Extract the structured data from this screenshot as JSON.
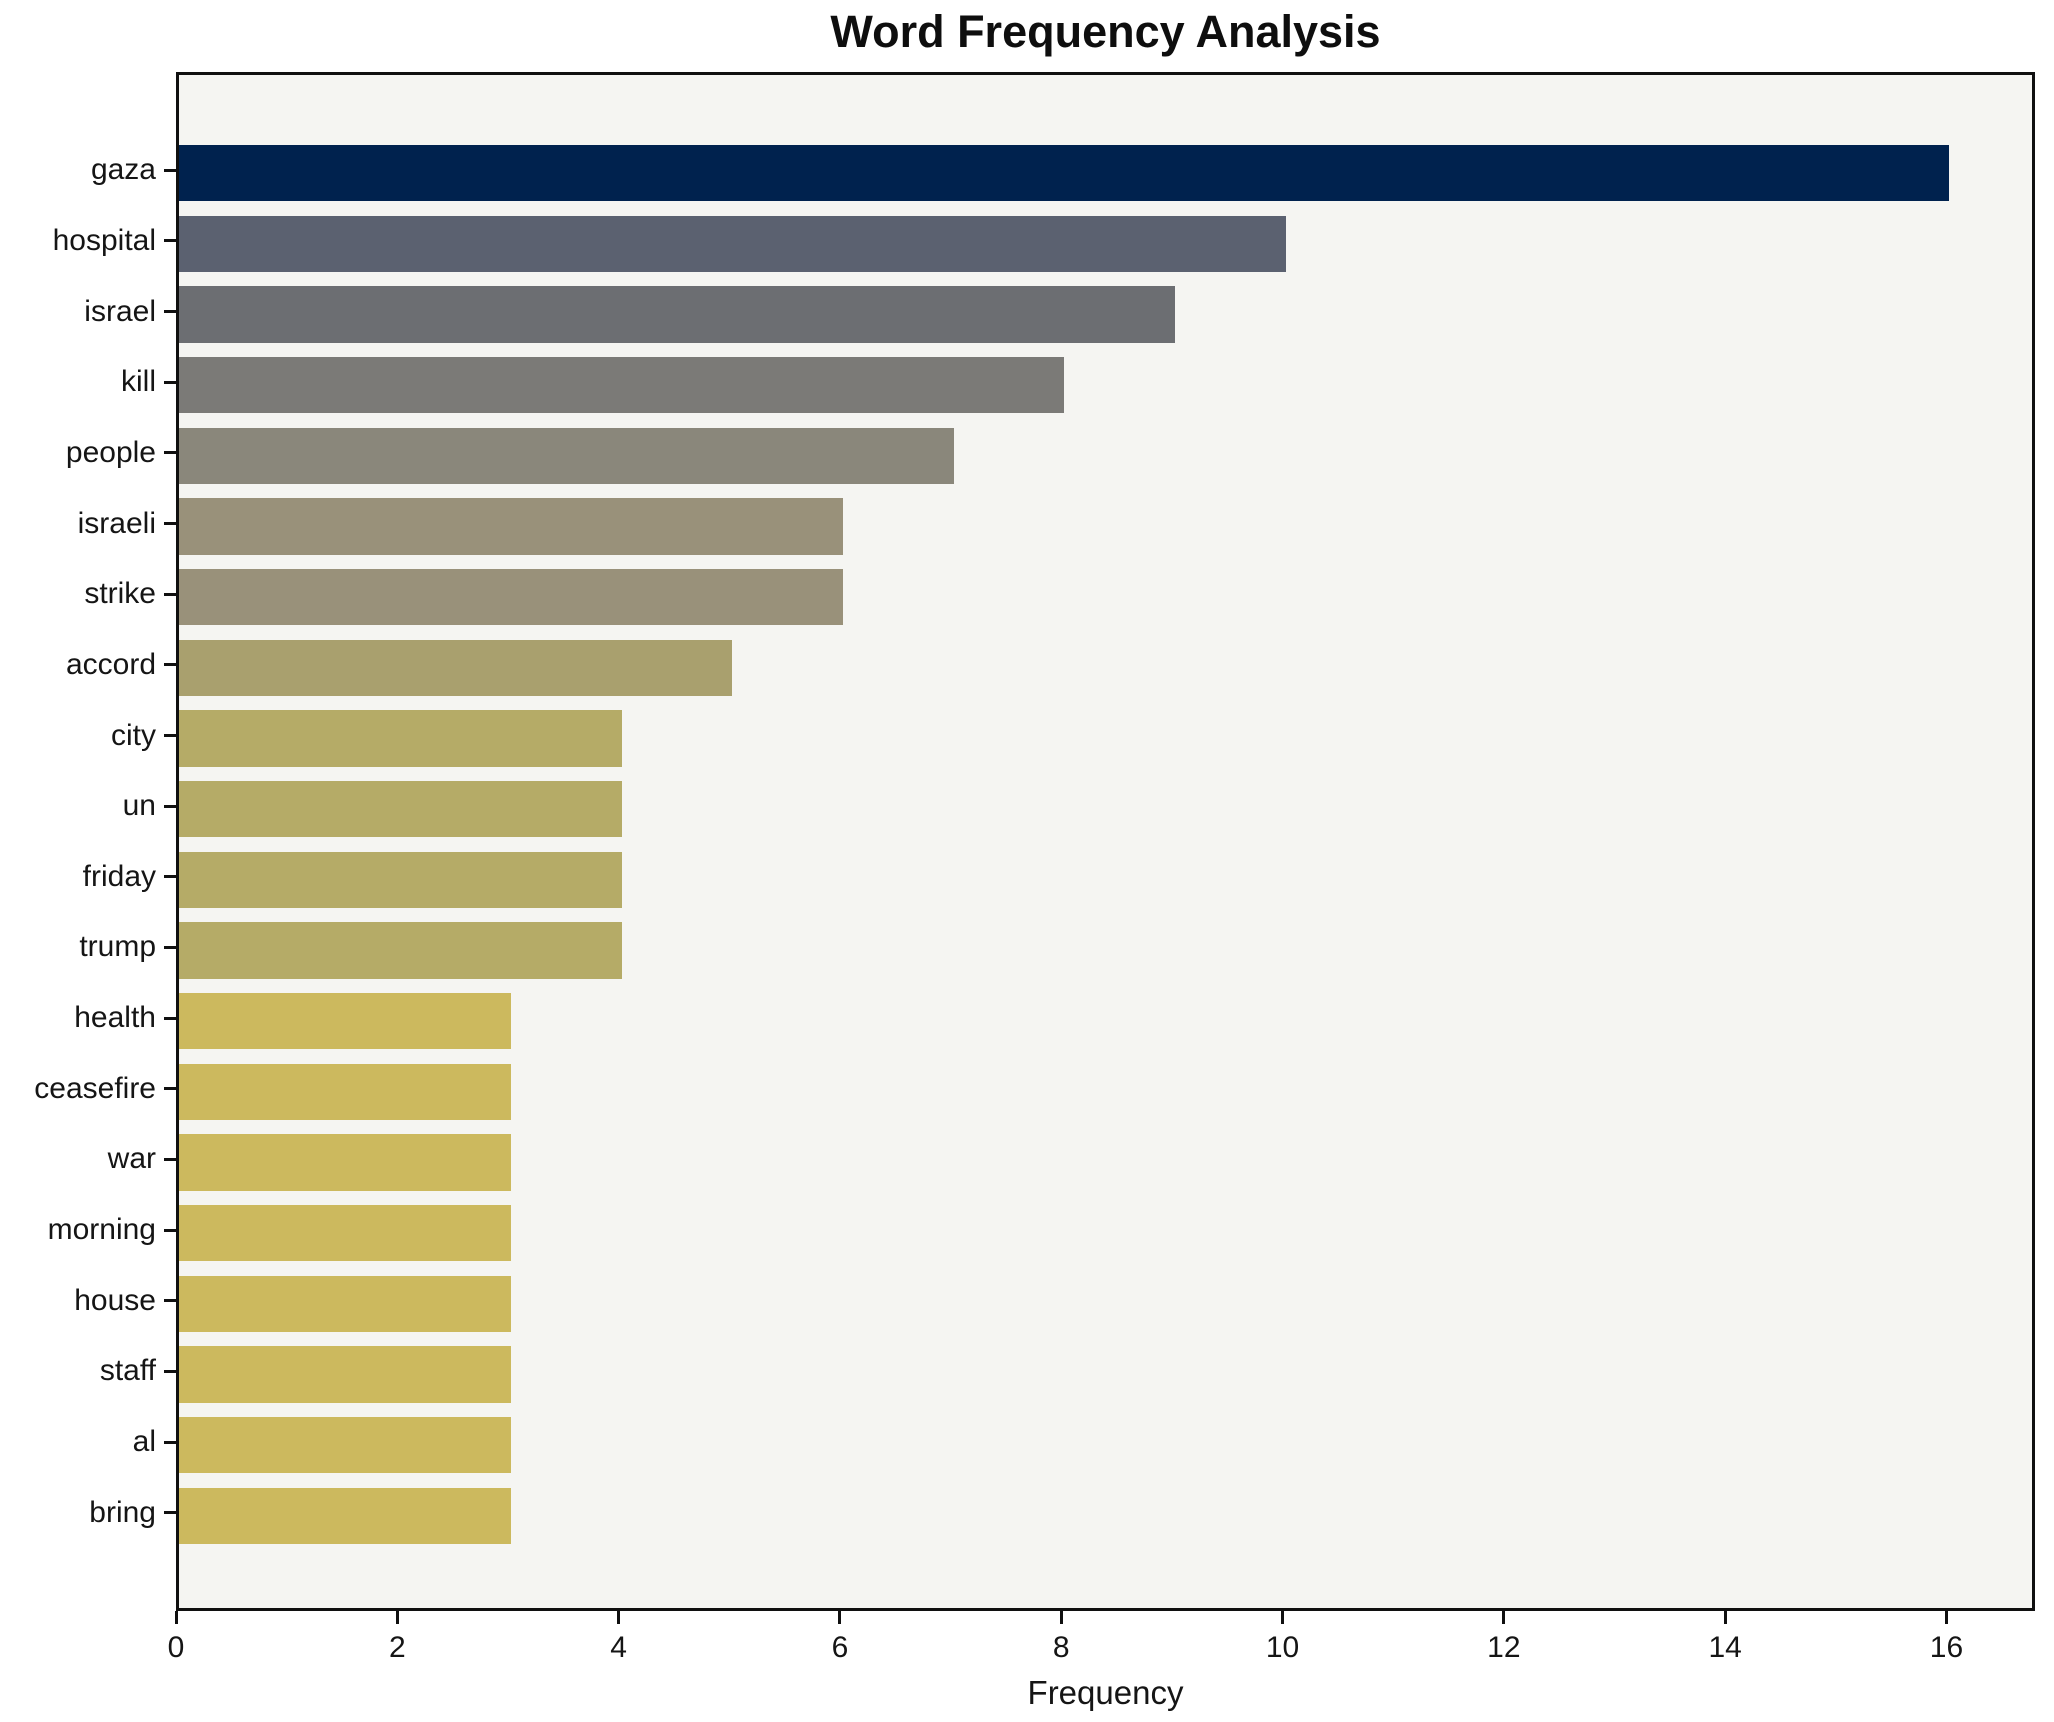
{
  "chart_data": {
    "type": "bar",
    "orientation": "horizontal",
    "title": "Word Frequency Analysis",
    "xlabel": "Frequency",
    "ylabel": "",
    "categories": [
      "gaza",
      "hospital",
      "israel",
      "kill",
      "people",
      "israeli",
      "strike",
      "accord",
      "city",
      "un",
      "friday",
      "trump",
      "health",
      "ceasefire",
      "war",
      "morning",
      "house",
      "staff",
      "al",
      "bring"
    ],
    "values": [
      16,
      10,
      9,
      8,
      7,
      6,
      6,
      5,
      4,
      4,
      4,
      4,
      3,
      3,
      3,
      3,
      3,
      3,
      3,
      3
    ],
    "bar_colors": [
      "#00224e",
      "#5b6170",
      "#6c6e72",
      "#7b7a77",
      "#8a877b",
      "#99917a",
      "#99917a",
      "#a9a06e",
      "#b5ab67",
      "#b5ab67",
      "#b5ab67",
      "#b5ab67",
      "#ccb95e",
      "#ccb95e",
      "#ccb95e",
      "#ccb95e",
      "#ccb95e",
      "#ccb95e",
      "#ccb95e",
      "#ccb95e"
    ],
    "x_ticks": [
      0,
      2,
      4,
      6,
      8,
      10,
      12,
      14,
      16
    ],
    "xlim": [
      0,
      16.8
    ],
    "bar_height_frac": 0.8,
    "grid": false,
    "legend_position": "none",
    "plot_bg": "#f5f5f2",
    "figure_bg": "#ffffff",
    "spine_color": "#101010"
  }
}
